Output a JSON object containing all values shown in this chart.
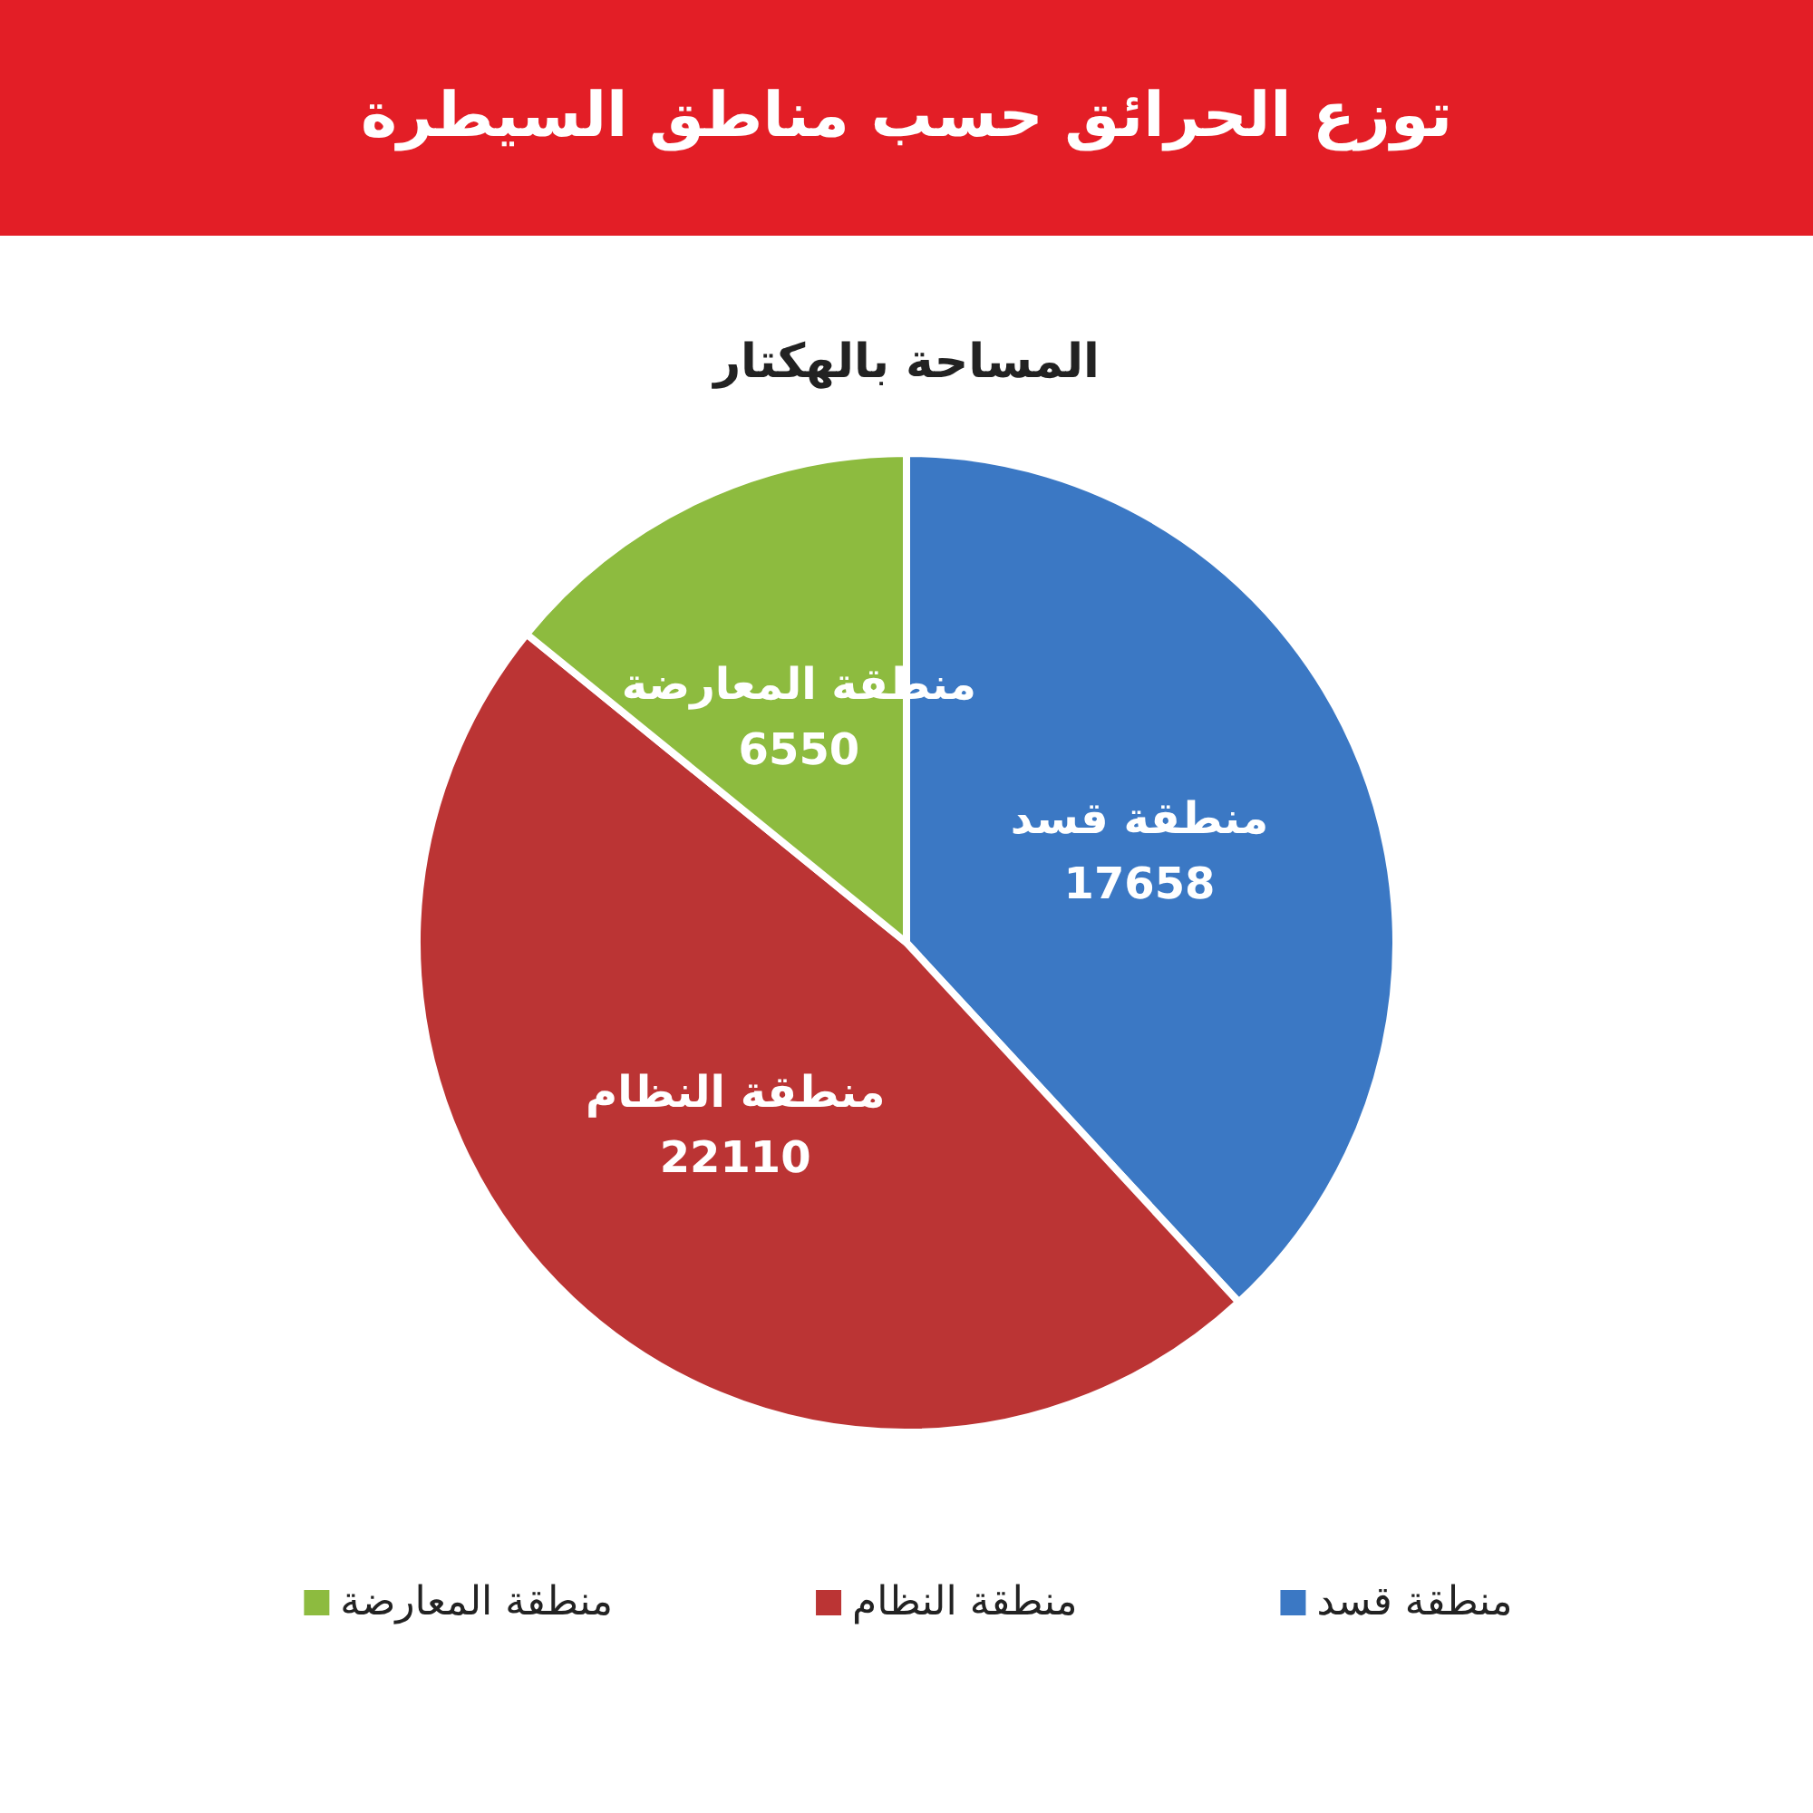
{
  "chart_data": {
    "type": "pie",
    "title": "توزع الحرائق حسب مناطق السيطرة",
    "subtitle": "المساحة بالهكتار",
    "categories": [
      "منطقة قسد",
      "منطقة النظام",
      "منطقة المعارضة"
    ],
    "values": [
      17658,
      22110,
      6550
    ],
    "colors": [
      "#3b78c4",
      "#bb3434",
      "#8dbb3f"
    ],
    "data_labels": true,
    "legend": "bottom"
  }
}
